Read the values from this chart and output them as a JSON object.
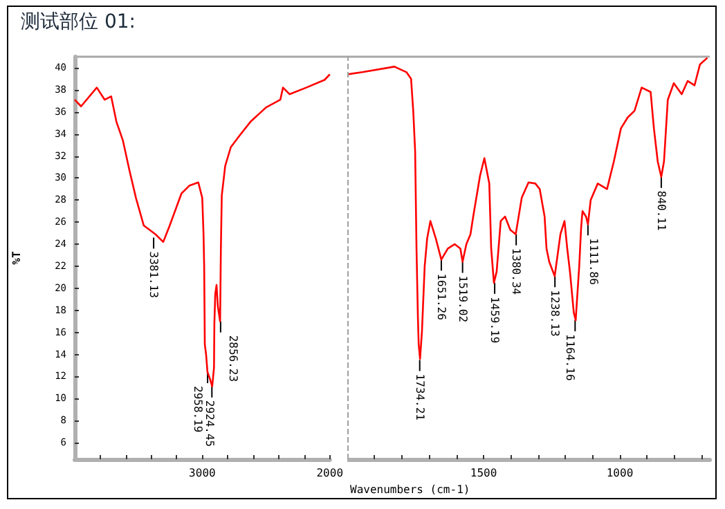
{
  "chart_data": [
    {
      "type": "line",
      "title": "测试部位 01:",
      "ylabel": "%T",
      "xlim": [
        4000,
        2000
      ],
      "ylim": [
        4.5,
        41
      ],
      "xticks": [
        {
          "value": 3800,
          "label": null
        },
        {
          "value": 3600,
          "label": null
        },
        {
          "value": 3400,
          "label": null
        },
        {
          "value": 3200,
          "label": null
        },
        3000,
        {
          "value": 2800,
          "label": null
        },
        {
          "value": 2600,
          "label": null
        },
        {
          "value": 2400,
          "label": null
        },
        {
          "value": 2200,
          "label": null
        },
        2000
      ],
      "yticks": [
        6,
        8,
        10,
        12,
        14,
        16,
        18,
        20,
        22,
        24,
        26,
        28,
        30,
        32,
        34,
        36,
        38,
        40
      ],
      "marker": "none",
      "grid": false,
      "series": [
        {
          "color": "#ff0000",
          "x": [
            4000,
            3950,
            3827,
            3765,
            3714,
            3673,
            3622,
            3571,
            3520,
            3459,
            3367,
            3306,
            3255,
            3163,
            3102,
            3031,
            3000,
            2990,
            2985,
            2980,
            2970,
            2959,
            2940,
            2922,
            2908,
            2905,
            2898,
            2888,
            2878,
            2860,
            2854,
            2847,
            2820,
            2776,
            2704,
            2622,
            2500,
            2388,
            2367,
            2316,
            2184,
            2041,
            2000
          ],
          "values": [
            37.1,
            36.5,
            38.2,
            37.1,
            37.4,
            35.1,
            33.4,
            30.7,
            28.2,
            25.7,
            24.9,
            24.2,
            25.7,
            28.6,
            29.3,
            29.6,
            28.2,
            24.9,
            22.0,
            14.9,
            14.0,
            12.4,
            11.8,
            11.1,
            12.8,
            16.8,
            19.5,
            20.3,
            18.4,
            17.0,
            23.6,
            28.4,
            31.1,
            32.8,
            33.9,
            35.1,
            36.4,
            37.1,
            38.2,
            37.6,
            38.2,
            38.9,
            39.4
          ]
        }
      ],
      "annotations": [
        {
          "text": "3381.13",
          "x": 3381.13,
          "y": 24.6
        },
        {
          "text": "2958.19",
          "x": 2958.19,
          "y": 12.4
        },
        {
          "text": "2924.45",
          "x": 2924.45,
          "y": 11.1
        },
        {
          "text": "2856.23",
          "x": 2856.23,
          "y": 17.0
        }
      ]
    },
    {
      "type": "line",
      "xlabel": "Wavenumbers (cm-1)",
      "xlim": [
        2000,
        670
      ],
      "ylim": [
        4.5,
        41
      ],
      "xticks": [
        {
          "value": 1900,
          "label": null
        },
        {
          "value": 1800,
          "label": null
        },
        {
          "value": 1700,
          "label": null
        },
        {
          "value": 1600,
          "label": null
        },
        1500,
        {
          "value": 1400,
          "label": null
        },
        {
          "value": 1300,
          "label": null
        },
        {
          "value": 1200,
          "label": null
        },
        {
          "value": 1100,
          "label": null
        },
        1000,
        {
          "value": 900,
          "label": null
        },
        {
          "value": 800,
          "label": null
        },
        {
          "value": 700,
          "label": null
        }
      ],
      "yticks": [
        6,
        8,
        10,
        12,
        14,
        16,
        18,
        20,
        22,
        24,
        26,
        28,
        30,
        32,
        34,
        36,
        38,
        40
      ],
      "tick_labels": "x",
      "marker": "none",
      "grid": false,
      "ref_lines": [
        {
          "axis": "x",
          "value": 2000,
          "color": "#a0a0a0",
          "line_style": "dashed"
        }
      ],
      "series": [
        {
          "color": "#ff0000",
          "x": [
            2000,
            1944,
            1827,
            1783,
            1766,
            1758,
            1751,
            1746,
            1741,
            1738,
            1733,
            1726,
            1716,
            1707,
            1695,
            1675,
            1655,
            1631,
            1606,
            1585,
            1577,
            1563,
            1548,
            1538,
            1513,
            1497,
            1479,
            1472,
            1462,
            1452,
            1437,
            1421,
            1402,
            1382,
            1360,
            1335,
            1310,
            1294,
            1276,
            1269,
            1259,
            1239,
            1218,
            1203,
            1193,
            1183,
            1169,
            1162,
            1149,
            1142,
            1137,
            1124,
            1117,
            1107,
            1081,
            1047,
            1022,
            996,
            971,
            946,
            920,
            887,
            875,
            861,
            848,
            838,
            824,
            802,
            773,
            751,
            726,
            706,
            679
          ],
          "values": [
            39.4,
            39.6,
            40.1,
            39.6,
            39.0,
            36.1,
            32.4,
            23.6,
            17.5,
            14.9,
            13.6,
            16.1,
            22.0,
            24.5,
            26.1,
            24.5,
            22.6,
            23.6,
            24.0,
            23.6,
            22.4,
            24.0,
            24.9,
            26.5,
            30.2,
            31.8,
            29.5,
            23.6,
            20.5,
            21.5,
            26.1,
            26.5,
            25.3,
            24.9,
            28.2,
            29.6,
            29.5,
            29.0,
            26.5,
            23.6,
            22.4,
            21.1,
            24.9,
            26.1,
            23.6,
            21.5,
            17.8,
            17.1,
            22.0,
            25.5,
            27.0,
            26.5,
            25.8,
            28.0,
            29.5,
            29.0,
            31.5,
            34.5,
            35.5,
            36.1,
            38.2,
            37.8,
            34.5,
            31.5,
            30.1,
            31.5,
            37.1,
            38.6,
            37.6,
            38.8,
            38.4,
            40.3,
            40.9
          ]
        }
      ],
      "annotations": [
        {
          "text": "1734.21",
          "x": 1734.21,
          "y": 13.5
        },
        {
          "text": "1651.26",
          "x": 1655,
          "y": 22.6
        },
        {
          "text": "1519.02",
          "x": 1577,
          "y": 22.4
        },
        {
          "text": "1459.19",
          "x": 1459.19,
          "y": 20.5
        },
        {
          "text": "1380.34",
          "x": 1380.34,
          "y": 24.9
        },
        {
          "text": "1238.13",
          "x": 1238.13,
          "y": 21.1
        },
        {
          "text": "1164.16",
          "x": 1164.16,
          "y": 17.1
        },
        {
          "text": "1111.86",
          "x": 1117,
          "y": 25.8
        },
        {
          "text": "840.11",
          "x": 848,
          "y": 30.1
        }
      ]
    }
  ]
}
